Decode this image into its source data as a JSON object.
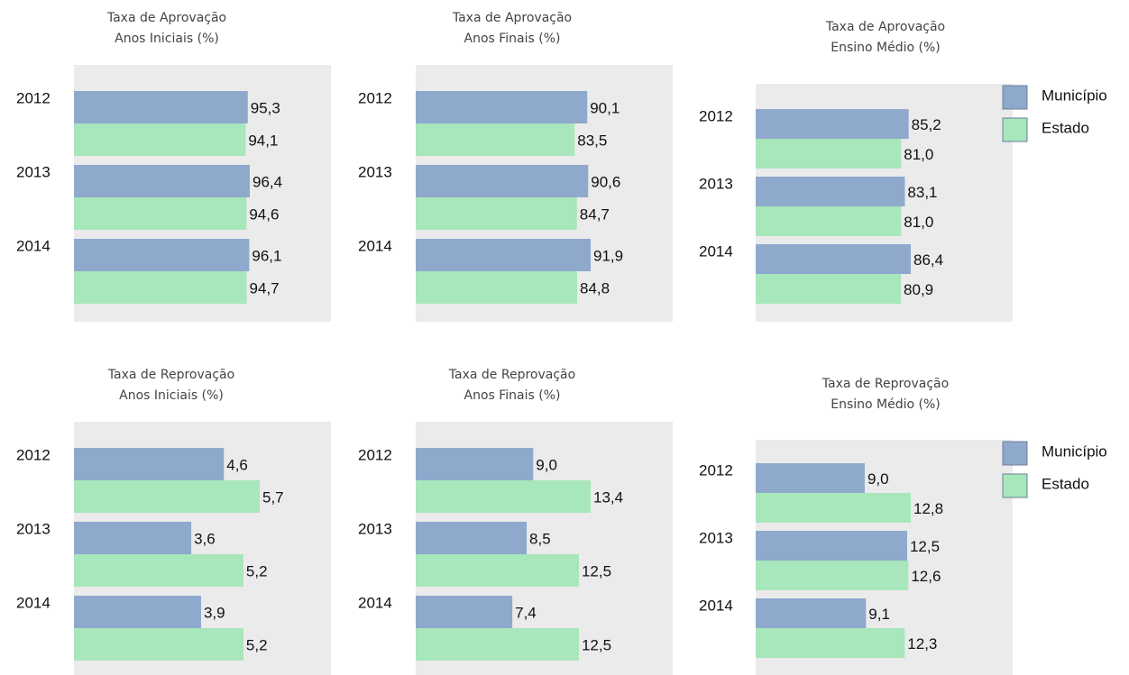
{
  "chart_data": [
    {
      "type": "bar",
      "orientation": "horizontal",
      "title": "Taxa de Aprovação",
      "subtitle": "Anos Iniciais (%)",
      "categories": [
        "2012",
        "2013",
        "2014"
      ],
      "series": [
        {
          "name": "Município",
          "color": "#8ea9cc",
          "values": [
            95.3,
            96.4,
            96.1
          ],
          "value_labels": [
            "95,3",
            "96,4",
            "96,1"
          ]
        },
        {
          "name": "Estado",
          "color": "#a8e6bb",
          "values": [
            94.1,
            94.6,
            94.7
          ],
          "value_labels": [
            "94,1",
            "94,6",
            "94,7"
          ]
        }
      ]
    },
    {
      "type": "bar",
      "orientation": "horizontal",
      "title": "Taxa de Aprovação",
      "subtitle": "Anos Finais (%)",
      "categories": [
        "2012",
        "2013",
        "2014"
      ],
      "series": [
        {
          "name": "Município",
          "color": "#8ea9cc",
          "values": [
            90.1,
            90.6,
            91.9
          ],
          "value_labels": [
            "90,1",
            "90,6",
            "91,9"
          ]
        },
        {
          "name": "Estado",
          "color": "#a8e6bb",
          "values": [
            83.5,
            84.7,
            84.8
          ],
          "value_labels": [
            "83,5",
            "84,7",
            "84,8"
          ]
        }
      ]
    },
    {
      "type": "bar",
      "orientation": "horizontal",
      "title": "Taxa de Aprovação",
      "subtitle": "Ensino Médio (%)",
      "categories": [
        "2012",
        "2013",
        "2014"
      ],
      "legend": "right",
      "series": [
        {
          "name": "Município",
          "color": "#8ea9cc",
          "values": [
            85.2,
            83.1,
            86.4
          ],
          "value_labels": [
            "85,2",
            "83,1",
            "86,4"
          ]
        },
        {
          "name": "Estado",
          "color": "#a8e6bb",
          "values": [
            81.0,
            81.0,
            80.9
          ],
          "value_labels": [
            "81,0",
            "81,0",
            "80,9"
          ]
        }
      ]
    },
    {
      "type": "bar",
      "orientation": "horizontal",
      "title": "Taxa de Reprovação",
      "subtitle": "Anos Iniciais (%)",
      "categories": [
        "2012",
        "2013",
        "2014"
      ],
      "series": [
        {
          "name": "Município",
          "color": "#8ea9cc",
          "values": [
            4.6,
            3.6,
            3.9
          ],
          "value_labels": [
            "4,6",
            "3,6",
            "3,9"
          ]
        },
        {
          "name": "Estado",
          "color": "#a8e6bb",
          "values": [
            5.7,
            5.2,
            5.2
          ],
          "value_labels": [
            "5,7",
            "5,2",
            "5,2"
          ]
        }
      ]
    },
    {
      "type": "bar",
      "orientation": "horizontal",
      "title": "Taxa de Reprovação",
      "subtitle": "Anos Finais (%)",
      "categories": [
        "2012",
        "2013",
        "2014"
      ],
      "series": [
        {
          "name": "Município",
          "color": "#8ea9cc",
          "values": [
            9.0,
            8.5,
            7.4
          ],
          "value_labels": [
            "9,0",
            "8,5",
            "7,4"
          ]
        },
        {
          "name": "Estado",
          "color": "#a8e6bb",
          "values": [
            13.4,
            12.5,
            12.5
          ],
          "value_labels": [
            "13,4",
            "12,5",
            "12,5"
          ]
        }
      ]
    },
    {
      "type": "bar",
      "orientation": "horizontal",
      "title": "Taxa de Reprovação",
      "subtitle": "Ensino Médio (%)",
      "categories": [
        "2012",
        "2013",
        "2014"
      ],
      "legend": "right",
      "series": [
        {
          "name": "Município",
          "color": "#8ea9cc",
          "values": [
            9.0,
            12.5,
            9.1
          ],
          "value_labels": [
            "9,0",
            "12,5",
            "9,1"
          ]
        },
        {
          "name": "Estado",
          "color": "#a8e6bb",
          "values": [
            12.8,
            12.6,
            12.3
          ],
          "value_labels": [
            "12,8",
            "12,6",
            "12,3"
          ]
        }
      ]
    }
  ]
}
